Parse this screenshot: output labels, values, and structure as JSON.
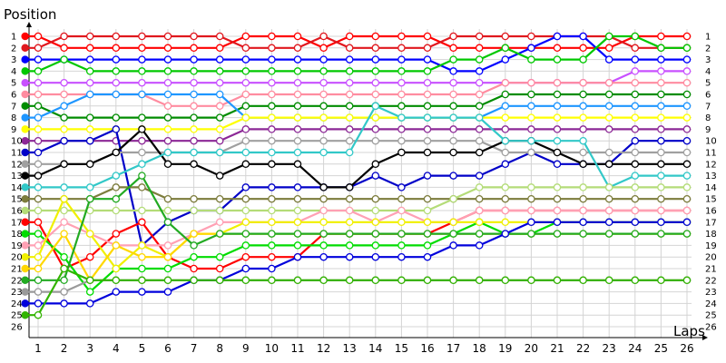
{
  "chart_data": {
    "type": "line",
    "title": "",
    "xlabel": "Laps",
    "ylabel": "Position",
    "x": [
      1,
      2,
      3,
      4,
      5,
      6,
      7,
      8,
      9,
      10,
      11,
      12,
      13,
      14,
      15,
      16,
      17,
      18,
      19,
      20,
      21,
      22,
      23,
      24,
      25,
      26
    ],
    "y_ticks": [
      1,
      2,
      3,
      4,
      5,
      6,
      7,
      8,
      9,
      10,
      11,
      12,
      13,
      14,
      15,
      16,
      17,
      18,
      19,
      20,
      21,
      22,
      23,
      24,
      25,
      26
    ],
    "y_reversed": true,
    "ylim": [
      1,
      26
    ],
    "xlim": [
      0.5,
      26.5
    ],
    "grid": true,
    "legend": "none",
    "start_column": 0.5,
    "series": [
      {
        "color": "#ff0000",
        "positions": [
          1,
          2,
          2,
          2,
          2,
          2,
          2,
          2,
          1,
          1,
          1,
          2,
          1,
          1,
          1,
          1,
          2,
          2,
          2,
          2,
          2,
          2,
          2,
          1,
          1,
          1
        ]
      },
      {
        "color": "#e0181e",
        "positions": [
          2,
          1,
          1,
          1,
          1,
          1,
          1,
          1,
          2,
          2,
          2,
          1,
          2,
          2,
          2,
          2,
          1,
          1,
          1,
          1,
          1,
          1,
          1,
          2,
          2,
          2
        ]
      },
      {
        "color": "#0000ff",
        "positions": [
          3,
          3,
          3,
          3,
          3,
          3,
          3,
          3,
          3,
          3,
          3,
          3,
          3,
          3,
          3,
          3,
          4,
          4,
          3,
          2,
          1,
          1,
          3,
          3,
          3,
          3
        ]
      },
      {
        "color": "#00c800",
        "positions": [
          4,
          3,
          4,
          4,
          4,
          4,
          4,
          4,
          4,
          4,
          4,
          4,
          4,
          4,
          4,
          4,
          3,
          3,
          2,
          3,
          3,
          3,
          1,
          1,
          2,
          2
        ]
      },
      {
        "color": "#c850ff",
        "positions": [
          5,
          5,
          5,
          5,
          5,
          5,
          5,
          5,
          5,
          5,
          5,
          5,
          5,
          5,
          5,
          5,
          5,
          5,
          5,
          5,
          5,
          5,
          5,
          4,
          4,
          4
        ]
      },
      {
        "color": "#ff8ca0",
        "positions": [
          6,
          6,
          6,
          6,
          6,
          7,
          7,
          7,
          6,
          6,
          6,
          6,
          6,
          6,
          6,
          6,
          6,
          6,
          5,
          5,
          5,
          5,
          5,
          5,
          5,
          5
        ]
      },
      {
        "color": "#008c00",
        "positions": [
          7,
          8,
          8,
          8,
          8,
          8,
          8,
          8,
          7,
          7,
          7,
          7,
          7,
          7,
          7,
          7,
          7,
          7,
          6,
          6,
          6,
          6,
          6,
          6,
          6,
          6
        ]
      },
      {
        "color": "#1e96ff",
        "positions": [
          8,
          7,
          6,
          6,
          6,
          6,
          6,
          6,
          8,
          8,
          8,
          8,
          8,
          8,
          8,
          8,
          8,
          8,
          7,
          7,
          7,
          7,
          7,
          7,
          7,
          7
        ]
      },
      {
        "color": "#ffff00",
        "positions": [
          9,
          9,
          9,
          9,
          9,
          9,
          9,
          9,
          8,
          8,
          8,
          8,
          8,
          8,
          8,
          8,
          8,
          8,
          8,
          8,
          8,
          8,
          8,
          8,
          8,
          8
        ]
      },
      {
        "color": "#8c2896",
        "positions": [
          10,
          10,
          10,
          10,
          10,
          10,
          10,
          10,
          9,
          9,
          9,
          9,
          9,
          9,
          9,
          9,
          9,
          9,
          9,
          9,
          9,
          9,
          9,
          9,
          9,
          9
        ]
      },
      {
        "color": "#0000c8",
        "positions": [
          11,
          10,
          10,
          9,
          19,
          17,
          16,
          16,
          14,
          14,
          14,
          14,
          14,
          13,
          14,
          13,
          13,
          13,
          12,
          11,
          12,
          12,
          12,
          10,
          10,
          10
        ]
      },
      {
        "color": "#a0a0a0",
        "positions": [
          12,
          12,
          12,
          11,
          11,
          11,
          11,
          11,
          10,
          10,
          10,
          10,
          10,
          10,
          10,
          10,
          10,
          10,
          11,
          11,
          11,
          11,
          11,
          11,
          11,
          11
        ]
      },
      {
        "color": "#000000",
        "positions": [
          13,
          12,
          12,
          11,
          9,
          12,
          12,
          13,
          12,
          12,
          12,
          14,
          14,
          12,
          11,
          11,
          11,
          11,
          10,
          10,
          11,
          12,
          12,
          12,
          12,
          12
        ]
      },
      {
        "color": "#32c8c8",
        "positions": [
          14,
          14,
          14,
          13,
          12,
          11,
          11,
          11,
          11,
          11,
          11,
          11,
          11,
          7,
          8,
          8,
          8,
          8,
          10,
          10,
          10,
          10,
          14,
          13,
          13,
          13
        ]
      },
      {
        "color": "#7c7c3c",
        "positions": [
          15,
          15,
          15,
          14,
          14,
          15,
          15,
          15,
          15,
          15,
          15,
          15,
          15,
          15,
          15,
          15,
          15,
          15,
          15,
          15,
          15,
          15,
          15,
          15,
          15,
          15
        ]
      },
      {
        "color": "#b4dc78",
        "positions": [
          16,
          16,
          16,
          16,
          16,
          16,
          16,
          16,
          16,
          16,
          16,
          16,
          16,
          16,
          16,
          16,
          15,
          14,
          14,
          14,
          14,
          14,
          14,
          14,
          14,
          14
        ]
      },
      {
        "color": "#ff0000",
        "positions": [
          17,
          21,
          20,
          18,
          17,
          20,
          21,
          21,
          20,
          20,
          20,
          18,
          18,
          18,
          18,
          18,
          17,
          16,
          16,
          16,
          16,
          16,
          16,
          16,
          16,
          16
        ]
      },
      {
        "color": "#00dc00",
        "positions": [
          18,
          20,
          23,
          21,
          21,
          21,
          20,
          20,
          19,
          19,
          19,
          19,
          19,
          19,
          19,
          19,
          18,
          17,
          18,
          18,
          17,
          17,
          17,
          17,
          17,
          17
        ]
      },
      {
        "color": "#ffa0b4",
        "positions": [
          19,
          17,
          18,
          19,
          19,
          19,
          18,
          17,
          17,
          17,
          17,
          16,
          16,
          17,
          16,
          17,
          17,
          16,
          16,
          16,
          16,
          16,
          16,
          16,
          16,
          16
        ]
      },
      {
        "color": "#f0f000",
        "positions": [
          20,
          15,
          18,
          21,
          19,
          20,
          18,
          18,
          17,
          17,
          17,
          17,
          17,
          17,
          17,
          17,
          17,
          17,
          17,
          17,
          17,
          17,
          17,
          17,
          17,
          17
        ]
      },
      {
        "color": "#ffd700",
        "positions": [
          21,
          18,
          22,
          19,
          20,
          20,
          18,
          18,
          18,
          18,
          18,
          18,
          18,
          18,
          18,
          18,
          18,
          18,
          18,
          18,
          18,
          18,
          18,
          18,
          18,
          18
        ]
      },
      {
        "color": "#22aa22",
        "positions": [
          22,
          22,
          15,
          15,
          13,
          17,
          19,
          18,
          18,
          18,
          18,
          18,
          18,
          18,
          18,
          18,
          18,
          18,
          18,
          18,
          18,
          18,
          18,
          18,
          18,
          18
        ]
      },
      {
        "color": "#9a9a9a",
        "positions": [
          23,
          23,
          22,
          22,
          22,
          22,
          22,
          22,
          22,
          22,
          22,
          22,
          22,
          22,
          22,
          22,
          22,
          22,
          22,
          22,
          22,
          22,
          22,
          22,
          22,
          22
        ]
      },
      {
        "color": "#0000dc",
        "positions": [
          24,
          24,
          24,
          23,
          23,
          23,
          22,
          22,
          21,
          21,
          20,
          20,
          20,
          20,
          20,
          20,
          19,
          19,
          18,
          17,
          17,
          17,
          17,
          17,
          17,
          17
        ]
      },
      {
        "color": "#32b400",
        "positions": [
          25,
          21,
          22,
          22,
          22,
          22,
          22,
          22,
          22,
          22,
          22,
          22,
          22,
          22,
          22,
          22,
          22,
          22,
          22,
          22,
          22,
          22,
          22,
          22,
          22,
          22
        ]
      }
    ]
  }
}
